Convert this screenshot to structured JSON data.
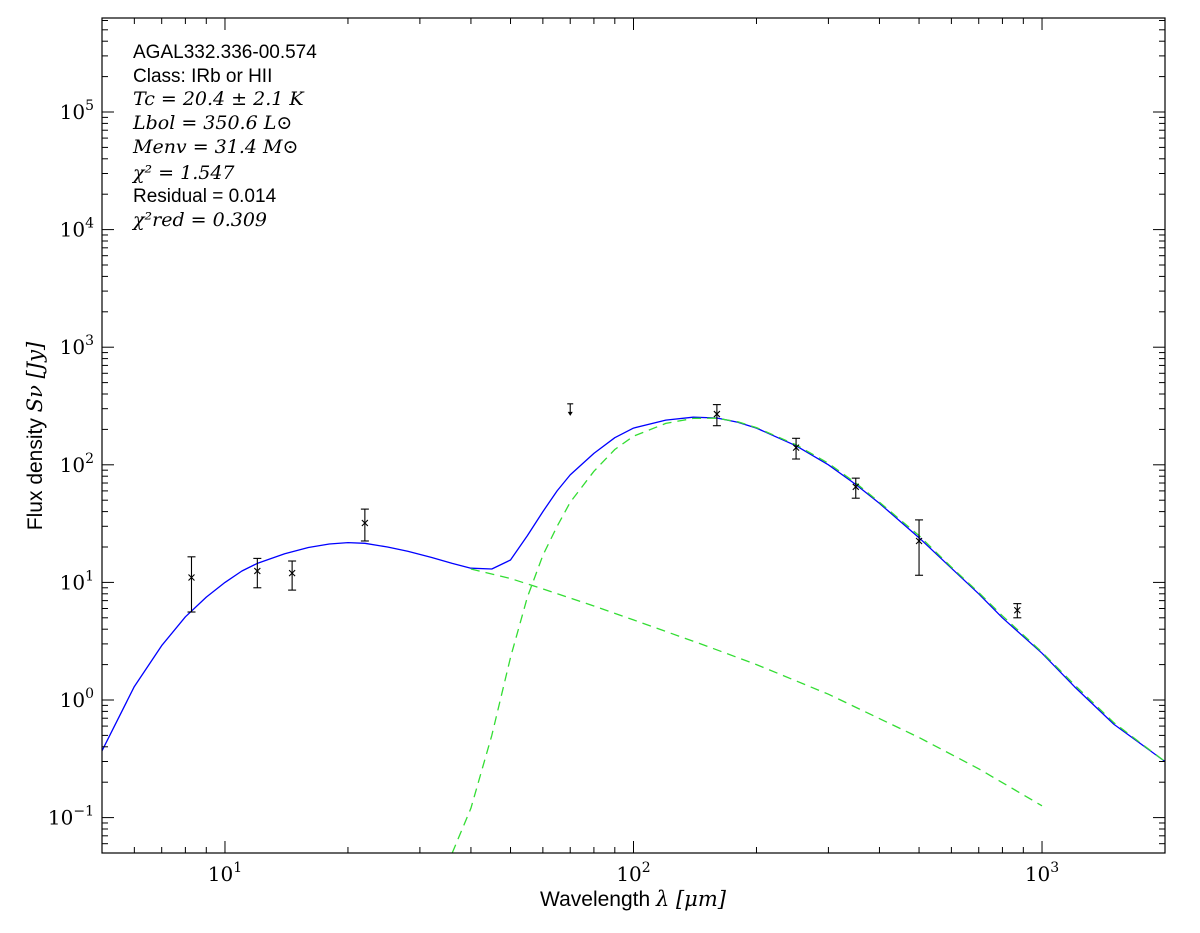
{
  "chart_data": {
    "type": "scatter",
    "xscale": "log",
    "yscale": "log",
    "xlim": [
      5,
      2000
    ],
    "ylim": [
      0.05,
      630000
    ],
    "xlabel_text": "Wavelength ",
    "xlabel_math": "λ [μm]",
    "ylabel_text": "Flux density ",
    "ylabel_math": "Sν [Jy]",
    "x_ticks": [
      {
        "base": "10",
        "exp": "1",
        "value": 10
      },
      {
        "base": "10",
        "exp": "2",
        "value": 100
      },
      {
        "base": "10",
        "exp": "3",
        "value": 1000
      }
    ],
    "y_ticks": [
      {
        "base": "10",
        "exp": "−1",
        "value": 0.1
      },
      {
        "base": "10",
        "exp": "0",
        "value": 1
      },
      {
        "base": "10",
        "exp": "1",
        "value": 10
      },
      {
        "base": "10",
        "exp": "2",
        "value": 100
      },
      {
        "base": "10",
        "exp": "3",
        "value": 1000
      },
      {
        "base": "10",
        "exp": "4",
        "value": 10000
      },
      {
        "base": "10",
        "exp": "5",
        "value": 100000
      }
    ],
    "annotations": {
      "source": "AGAL332.336-00.574",
      "class": "Class: IRb or HII",
      "tc": "Tc = 20.4 ± 2.1 K",
      "lbol": "Lbol = 350.6 L⊙",
      "menv": "Menv = 31.4 M⊙",
      "chi2": "χ² = 1.547",
      "residual": "Residual = 0.014",
      "chi2red": "χ²red = 0.309"
    },
    "points": [
      {
        "x": 8.28,
        "y": 11,
        "ylo": 5.6,
        "yhi": 16.5
      },
      {
        "x": 12,
        "y": 12.5,
        "ylo": 9,
        "yhi": 16
      },
      {
        "x": 14.6,
        "y": 12,
        "ylo": 8.6,
        "yhi": 15.2
      },
      {
        "x": 22,
        "y": 32,
        "ylo": 22.5,
        "yhi": 42
      },
      {
        "x": 160,
        "y": 270,
        "ylo": 215,
        "yhi": 325
      },
      {
        "x": 250,
        "y": 140,
        "ylo": 112,
        "yhi": 168
      },
      {
        "x": 350,
        "y": 65,
        "ylo": 52,
        "yhi": 77
      },
      {
        "x": 500,
        "y": 22.5,
        "ylo": 11.5,
        "yhi": 34
      },
      {
        "x": 870,
        "y": 5.8,
        "ylo": 5,
        "yhi": 6.6
      }
    ],
    "upper_limits": [
      {
        "x": 70,
        "y": 330
      }
    ],
    "series": [
      {
        "style": "solid",
        "color": "#0000ff",
        "x": [
          5,
          6,
          7,
          8,
          9,
          10,
          11,
          12,
          14,
          16,
          18,
          20,
          22,
          25,
          28,
          32,
          36,
          40,
          45,
          50,
          55,
          60,
          65,
          70,
          80,
          90,
          100,
          120,
          140,
          160,
          180,
          200,
          250,
          300,
          350,
          400,
          500,
          600,
          700,
          800,
          1000,
          1200,
          1500,
          2000
        ],
        "y": [
          0.37,
          1.3,
          2.9,
          5.1,
          7.5,
          10,
          12.5,
          14.5,
          17.5,
          19.8,
          21.2,
          21.8,
          21.5,
          20,
          18.4,
          16.3,
          14.5,
          13.2,
          13,
          15.5,
          25,
          40,
          60,
          82,
          125,
          170,
          205,
          240,
          254,
          250,
          230,
          205,
          145,
          100,
          68,
          47,
          24,
          13.2,
          8,
          5,
          2.5,
          1.3,
          0.62,
          0.3
        ]
      },
      {
        "style": "dashed",
        "color": "#33dd33",
        "x": [
          36,
          40,
          45,
          50,
          55,
          60,
          65,
          70,
          80,
          90,
          100,
          120,
          140,
          160,
          180,
          200,
          250,
          300,
          350,
          400,
          500,
          600,
          700,
          800,
          1000,
          1200,
          1500,
          2000
        ],
        "y": [
          0.05,
          0.12,
          0.5,
          2.3,
          7.5,
          17,
          30,
          48,
          88,
          135,
          175,
          225,
          248,
          249,
          232,
          207,
          148,
          103,
          70,
          48,
          25,
          13.5,
          8.2,
          5.2,
          2.55,
          1.35,
          0.64,
          0.3
        ]
      },
      {
        "style": "dashed",
        "color": "#33dd33",
        "x": [
          40,
          50,
          60,
          80,
          100,
          150,
          200,
          300,
          500,
          700,
          1000
        ],
        "y": [
          13,
          10.8,
          8.8,
          6.3,
          4.8,
          2.9,
          2.0,
          1.12,
          0.48,
          0.26,
          0.126
        ]
      }
    ]
  }
}
